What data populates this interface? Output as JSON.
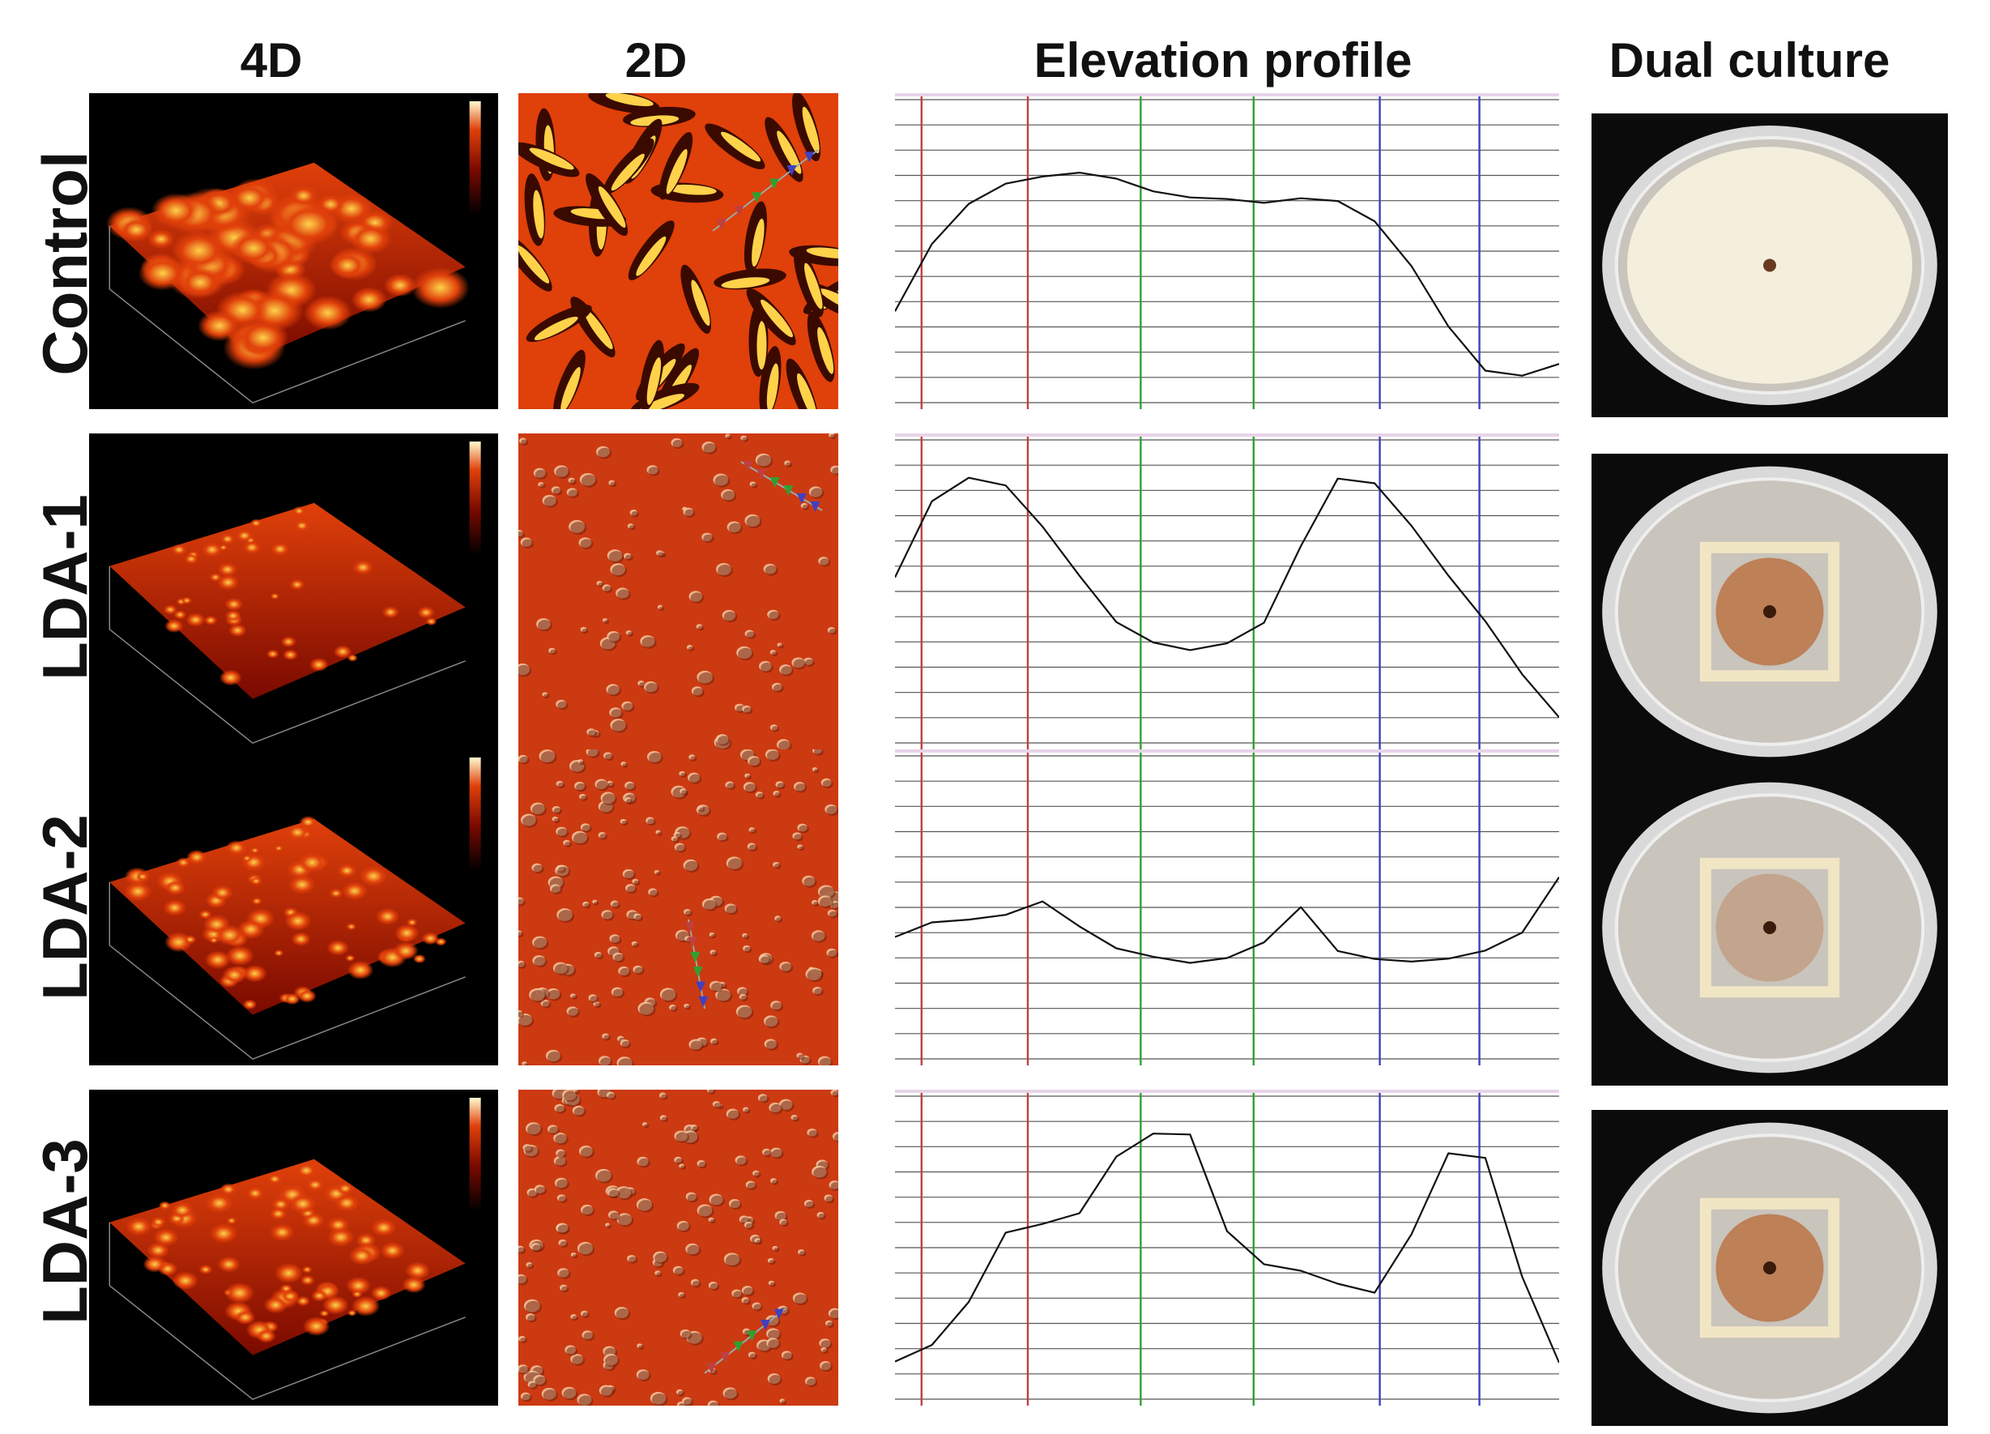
{
  "columns": [
    {
      "id": "4d",
      "label": "4D"
    },
    {
      "id": "2d",
      "label": "2D"
    },
    {
      "id": "elevation",
      "label": "Elevation profile"
    },
    {
      "id": "culture",
      "label": "Dual culture"
    }
  ],
  "rows": [
    {
      "label": "Control",
      "profile": [
        0.3,
        0.52,
        0.66,
        0.73,
        0.75,
        0.76,
        0.74,
        0.7,
        0.68,
        0.67,
        0.66,
        0.68,
        0.67,
        0.6,
        0.45,
        0.25,
        0.1,
        0.08,
        0.12
      ],
      "culture": "full-growth"
    },
    {
      "label": "LDA-1",
      "profile": [
        0.55,
        0.8,
        0.88,
        0.85,
        0.72,
        0.55,
        0.4,
        0.33,
        0.3,
        0.33,
        0.4,
        0.65,
        0.88,
        0.86,
        0.72,
        0.55,
        0.4,
        0.22,
        0.08
      ],
      "culture": "inhibited"
    },
    {
      "label": "LDA-2",
      "profile": [
        0.4,
        0.45,
        0.46,
        0.48,
        0.52,
        0.44,
        0.36,
        0.34,
        0.32,
        0.33,
        0.38,
        0.5,
        0.35,
        0.33,
        0.32,
        0.33,
        0.36,
        0.42,
        0.6
      ],
      "culture": "inhibited"
    },
    {
      "label": "LDA-3",
      "profile": [
        0.12,
        0.18,
        0.32,
        0.55,
        0.58,
        0.62,
        0.8,
        0.88,
        0.88,
        0.55,
        0.45,
        0.42,
        0.38,
        0.35,
        0.55,
        0.82,
        0.8,
        0.4,
        0.12
      ],
      "culture": "inhibited"
    }
  ],
  "colors": {
    "afm_dark": "#7a0a00",
    "afm_mid": "#e0400a",
    "afm_light": "#ffd24a",
    "marker_red": "#c04040",
    "marker_green": "#30a030",
    "marker_blue": "#4040c0",
    "grid": "#555555",
    "agar": "#c9c4bc",
    "mycelium": "#f3efdc",
    "colony_center": "#b86a35"
  }
}
